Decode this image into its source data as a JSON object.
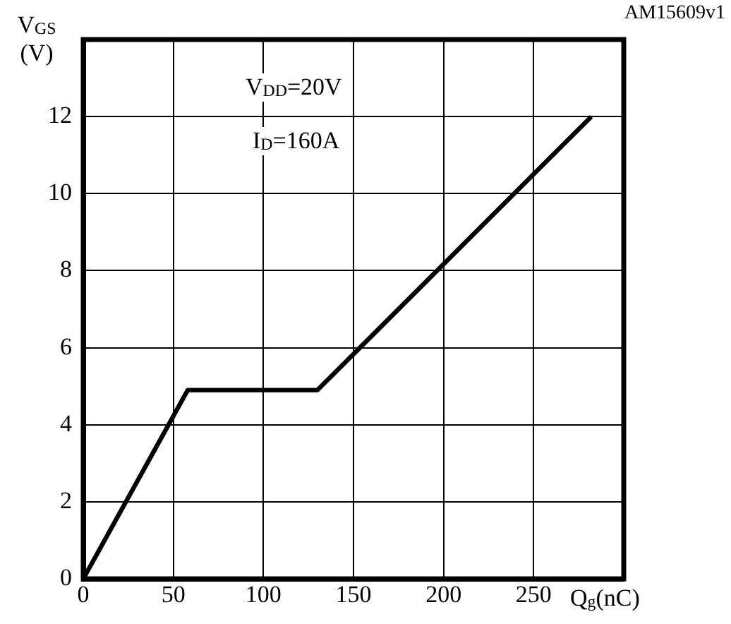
{
  "chart_data": {
    "type": "line",
    "xlabel": "Q$_{g}$(nC)",
    "ylabel": "V$_{GS}$ (V)",
    "annotations": [
      "AM15609v1",
      "V$_{DD}$=20V",
      "I$_{D}$=160A"
    ],
    "x": [
      0,
      58,
      130,
      282
    ],
    "series": [
      {
        "color": "#000000",
        "values": [
          0,
          4.9,
          4.9,
          12
        ]
      }
    ],
    "xlim": [
      0,
      300
    ],
    "xticks": [
      0,
      50,
      100,
      150,
      200,
      250,
      {
        "value": 300,
        "label": null
      }
    ],
    "ylim": [
      0,
      14
    ],
    "yticks": [
      0,
      2,
      4,
      6,
      8,
      10,
      12,
      {
        "value": 14,
        "label": null
      }
    ],
    "grid": true,
    "legend": false,
    "marker": "none",
    "line_style": "solid"
  }
}
